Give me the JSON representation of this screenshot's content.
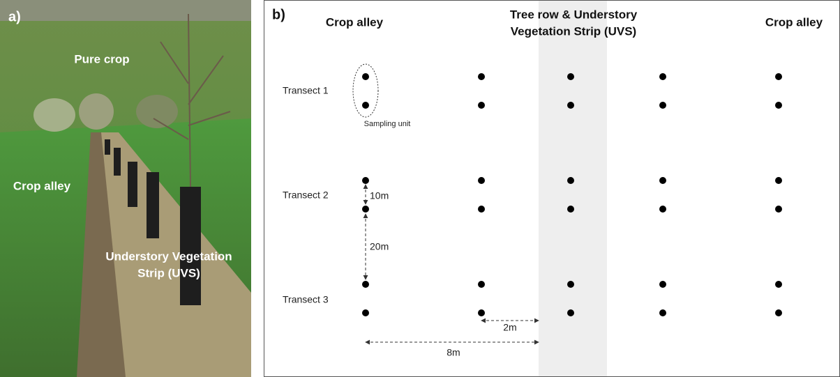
{
  "panel_a": {
    "label": "a)",
    "labels": {
      "pure_crop": "Pure crop",
      "crop_alley": "Crop alley",
      "uvs_line1": "Understory Vegetation",
      "uvs_line2": "Strip (UVS)"
    }
  },
  "panel_b": {
    "label": "b)",
    "headers": {
      "left": "Crop alley",
      "middle_line1": "Tree row & Understory",
      "middle_line2": "Vegetation Strip (UVS)",
      "right": "Crop alley"
    },
    "transects": [
      "Transect 1",
      "Transect 2",
      "Transect 3"
    ],
    "sampling_unit": "Sampling unit",
    "distances": {
      "within": "10m",
      "between": "20m",
      "to_strip_near": "2m",
      "to_strip_far": "8m"
    }
  }
}
